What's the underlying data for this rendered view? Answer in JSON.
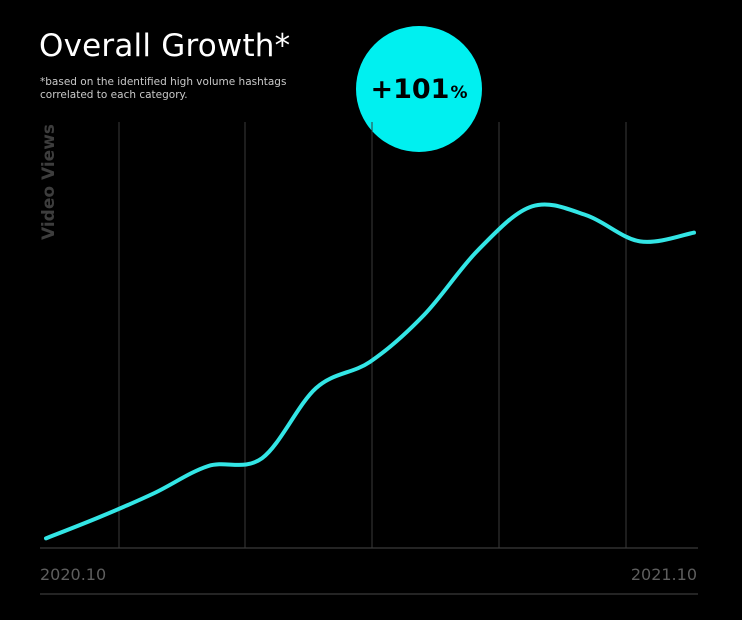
{
  "header": {
    "title": "Overall Growth*",
    "note": "*based on the identified high volume hashtags correlated to each category."
  },
  "badge": {
    "value": "+101",
    "unit": "%"
  },
  "colors": {
    "line": "#33e6e6",
    "badge": "#00f0f0",
    "background": "#000000",
    "grid": "#3a3a3a"
  },
  "chart_data": {
    "type": "line",
    "ylabel": "Video Views",
    "x_tick_labels": [
      "2020.10",
      "2021.10"
    ],
    "x_range": [
      "2020.10",
      "2021.10"
    ],
    "grid": "vertical",
    "series": [
      {
        "values": [
          {
            "x": "2020.10",
            "y": 2.2
          },
          {
            "x": "2020.11",
            "y": 7.1
          },
          {
            "x": "2020.12",
            "y": 12.5
          },
          {
            "x": "2021.01",
            "y": 18.7
          },
          {
            "x": "2021.02",
            "y": 20.5
          },
          {
            "x": "2021.03",
            "y": 36.5
          },
          {
            "x": "2021.04",
            "y": 42.5
          },
          {
            "x": "2021.05",
            "y": 53.2
          },
          {
            "x": "2021.06",
            "y": 68.0
          },
          {
            "x": "2021.07",
            "y": 78.0
          },
          {
            "x": "2021.08",
            "y": 76.0
          },
          {
            "x": "2021.09",
            "y": 70.0
          },
          {
            "x": "2021.10",
            "y": 72.0
          }
        ]
      }
    ]
  }
}
